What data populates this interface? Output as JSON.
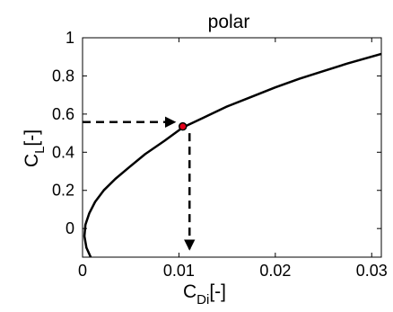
{
  "chart_data": {
    "type": "line",
    "title": "polar",
    "xlabel": {
      "main": "C",
      "sub": "Di",
      "suffix": "[-]"
    },
    "ylabel": {
      "main": "C",
      "sub": "L",
      "suffix": "[-]"
    },
    "xlim": [
      0,
      0.031
    ],
    "ylim": [
      -0.15,
      1.0
    ],
    "xticks": [
      0,
      0.01,
      0.02,
      0.03
    ],
    "xtick_labels": [
      "0",
      "0.01",
      "0.02",
      "0.03"
    ],
    "yticks": [
      0,
      0.2,
      0.4,
      0.6,
      0.8,
      1.0
    ],
    "ytick_labels": [
      "0",
      "0.2",
      "0.4",
      "0.6",
      "0.8",
      "1"
    ],
    "grid": false,
    "series": [
      {
        "color": "#000000",
        "x": [
          0.00085,
          0.0004,
          0.0002,
          0.0003,
          0.0007,
          0.0013,
          0.0022,
          0.0034,
          0.0048,
          0.0065,
          0.0085,
          0.0104,
          0.0125,
          0.015,
          0.0175,
          0.02,
          0.0225,
          0.025,
          0.0275,
          0.031
        ],
        "y": [
          -0.15,
          -0.1,
          -0.04,
          0.02,
          0.08,
          0.14,
          0.2,
          0.26,
          0.32,
          0.39,
          0.46,
          0.53,
          0.58,
          0.64,
          0.69,
          0.74,
          0.785,
          0.825,
          0.865,
          0.915
        ]
      }
    ],
    "marker": {
      "x": 0.0104,
      "y": 0.535,
      "color": "#e2001a"
    },
    "annotations": [
      {
        "kind": "arrow",
        "from": [
          0.0,
          0.558
        ],
        "to": [
          0.0096,
          0.558
        ]
      },
      {
        "kind": "arrow",
        "from": [
          0.0111,
          0.5
        ],
        "to": [
          0.0111,
          -0.11
        ]
      }
    ]
  }
}
